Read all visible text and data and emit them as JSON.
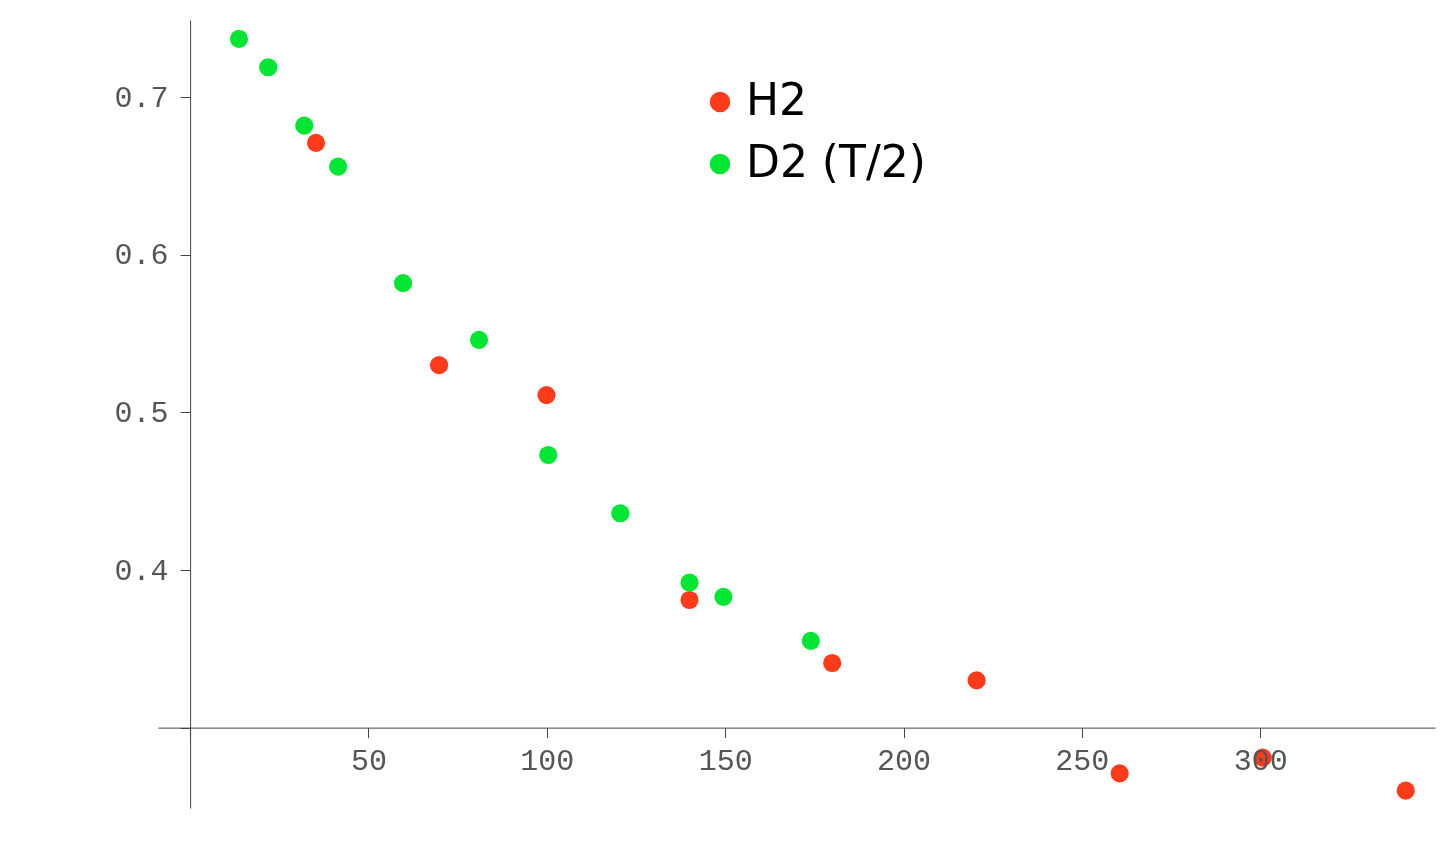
{
  "chart_data": {
    "type": "scatter",
    "marker": "circle",
    "legend": "top",
    "grid": false,
    "xlim": [
      -9,
      349
    ],
    "ylim": [
      0.249,
      0.749
    ],
    "xticks": [
      {
        "value": 0,
        "label": null
      },
      50,
      100,
      150,
      200,
      250,
      300
    ],
    "yticks": [
      {
        "value": 0.3,
        "label": null
      },
      {
        "value": 0.4,
        "label": "0.4"
      },
      {
        "value": 0.5,
        "label": "0.5"
      },
      {
        "value": 0.6,
        "label": "0.6"
      },
      {
        "value": 0.7,
        "label": "0.7"
      }
    ],
    "series": [
      {
        "name": "H2",
        "color": "#ff3b1a",
        "x": [
          35.3,
          69.8,
          99.9,
          140,
          180,
          220.5,
          260.6,
          300.7,
          340.8
        ],
        "values": [
          0.671,
          0.53,
          0.511,
          0.381,
          0.341,
          0.33,
          0.271,
          0.281,
          0.26
        ]
      },
      {
        "name": "D2 (T/2)",
        "color": "#00e632",
        "x": [
          13.7,
          21.9,
          32,
          41.5,
          59.7,
          81,
          100.4,
          120.6,
          140,
          149.5,
          174
        ],
        "values": [
          0.737,
          0.719,
          0.682,
          0.656,
          0.582,
          0.546,
          0.473,
          0.436,
          0.392,
          0.383,
          0.355
        ]
      }
    ]
  }
}
